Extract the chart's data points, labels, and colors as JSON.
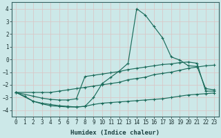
{
  "xlabel": "Humidex (Indice chaleur)",
  "xlim": [
    -0.5,
    23.5
  ],
  "ylim": [
    -4.5,
    4.5
  ],
  "xticks": [
    0,
    1,
    2,
    3,
    4,
    5,
    6,
    7,
    8,
    9,
    10,
    11,
    12,
    13,
    14,
    15,
    16,
    17,
    18,
    19,
    20,
    21,
    22,
    23
  ],
  "yticks": [
    -4,
    -3,
    -2,
    -1,
    0,
    1,
    2,
    3,
    4
  ],
  "bg_color": "#cce8e8",
  "line_color": "#1a6b5a",
  "grid_color": "#b8d8d8",
  "line1_x": [
    0,
    1,
    2,
    3,
    4,
    5,
    6,
    7,
    8,
    9,
    10,
    11,
    12,
    13,
    14,
    15,
    16,
    17,
    18,
    19,
    20,
    21,
    22,
    23
  ],
  "line1_y": [
    -2.6,
    -2.9,
    -3.3,
    -3.5,
    -3.65,
    -3.7,
    -3.75,
    -3.75,
    -3.7,
    -3.0,
    -1.9,
    -1.4,
    -0.9,
    -0.3,
    4.0,
    3.5,
    2.6,
    1.7,
    0.2,
    -0.05,
    -0.5,
    -0.55,
    -2.3,
    -2.4
  ],
  "line2_x": [
    0,
    2,
    3,
    4,
    5,
    6,
    7,
    8,
    9,
    10,
    11,
    12,
    13,
    14,
    15,
    16,
    17,
    18,
    19,
    20,
    21,
    22,
    23
  ],
  "line2_y": [
    -2.6,
    -2.6,
    -2.6,
    -2.6,
    -2.5,
    -2.4,
    -2.3,
    -2.2,
    -2.1,
    -2.0,
    -1.9,
    -1.8,
    -1.6,
    -1.5,
    -1.4,
    -1.2,
    -1.1,
    -1.0,
    -0.85,
    -0.7,
    -0.6,
    -0.5,
    -0.45
  ],
  "line3_x": [
    0,
    2,
    3,
    4,
    5,
    6,
    7,
    8,
    9,
    10,
    11,
    12,
    13,
    14,
    15,
    16,
    17,
    18,
    19,
    20,
    21,
    22,
    23
  ],
  "line3_y": [
    -2.6,
    -2.9,
    -3.05,
    -3.15,
    -3.2,
    -3.2,
    -3.1,
    -1.35,
    -1.25,
    -1.15,
    -1.05,
    -0.95,
    -0.8,
    -0.7,
    -0.6,
    -0.5,
    -0.4,
    -0.35,
    -0.25,
    -0.2,
    -0.3,
    -2.5,
    -2.5
  ],
  "line4_x": [
    0,
    2,
    3,
    4,
    5,
    6,
    7,
    8,
    9,
    10,
    11,
    12,
    13,
    14,
    15,
    16,
    17,
    18,
    19,
    20,
    21,
    22,
    23
  ],
  "line4_y": [
    -2.6,
    -3.3,
    -3.45,
    -3.55,
    -3.65,
    -3.7,
    -3.75,
    -3.7,
    -3.55,
    -3.45,
    -3.4,
    -3.35,
    -3.3,
    -3.25,
    -3.2,
    -3.15,
    -3.1,
    -3.0,
    -2.9,
    -2.8,
    -2.75,
    -2.7,
    -2.65
  ]
}
